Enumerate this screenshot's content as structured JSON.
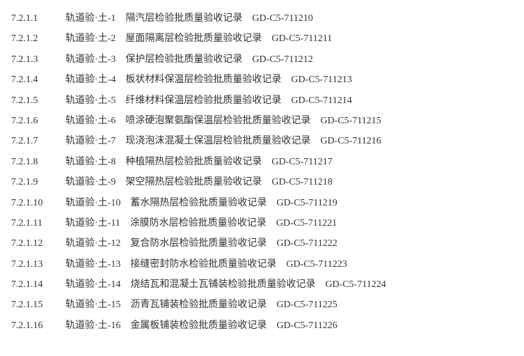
{
  "text_color": "#333333",
  "background_color": "#ffffff",
  "font_family": "SimSun",
  "font_size": 14,
  "line_height": 2.1,
  "entries": [
    {
      "num": "7.2.1.1",
      "label": "轨道验·土-1",
      "title": "隔汽层检验批质量验收记录",
      "code": "GD-C5-711210"
    },
    {
      "num": "7.2.1.2",
      "label": "轨道验·土-2",
      "title": "屋面隔离层检验批质量验收记录",
      "code": "GD-C5-711211"
    },
    {
      "num": "7.2.1.3",
      "label": "轨道验·土-3",
      "title": "保护层检验批质量验收记录",
      "code": "GD-C5-711212"
    },
    {
      "num": "7.2.1.4",
      "label": "轨道验·土-4",
      "title": "板状材料保温层检验批质量验收记录",
      "code": "GD-C5-711213"
    },
    {
      "num": "7.2.1.5",
      "label": "轨道验·土-5",
      "title": "纤维材料保温层检验批质量验收记录",
      "code": "GD-C5-711214"
    },
    {
      "num": "7.2.1.6",
      "label": "轨道验·土-6",
      "title": "喷涂硬泡聚氨酯保温层检验批质量验收记录",
      "code": "GD-C5-711215"
    },
    {
      "num": "7.2.1.7",
      "label": "轨道验·土-7",
      "title": "现浇泡沫混凝土保温层检验批质量验收记录",
      "code": "GD-C5-711216"
    },
    {
      "num": "7.2.1.8",
      "label": "轨道验·土-8",
      "title": "种植隔热层检验批质量验收记录",
      "code": "GD-C5-711217"
    },
    {
      "num": "7.2.1.9",
      "label": "轨道验·土-9",
      "title": "架空隔热层检验批质量验收记录",
      "code": "GD-C5-711218"
    },
    {
      "num": "7.2.1.10",
      "label": "轨道验·土-10",
      "title": "蓄水隔热层检验批质量验收记录",
      "code": "GD-C5-711219"
    },
    {
      "num": "7.2.1.11",
      "label": "轨道验·土-11",
      "title": "涂膜防水层检验批质量验收记录",
      "code": "GD-C5-711221"
    },
    {
      "num": "7.2.1.12",
      "label": "轨道验·土-12",
      "title": "复合防水层检验批质量验收记录",
      "code": "GD-C5-711222"
    },
    {
      "num": "7.2.1.13",
      "label": "轨道验·土-13",
      "title": "接缝密封防水检验批质量验收记录",
      "code": "GD-C5-711223"
    },
    {
      "num": "7.2.1.14",
      "label": "轨道验·土-14",
      "title": "烧结瓦和混凝土瓦铺装检验批质量验收记录",
      "code": "GD-C5-711224"
    },
    {
      "num": "7.2.1.15",
      "label": "轨道验·土-15",
      "title": "沥青瓦铺装检验批质量验收记录",
      "code": "GD-C5-711225"
    },
    {
      "num": "7.2.1.16",
      "label": "轨道验·土-16",
      "title": "金属板铺装检验批质量验收记录",
      "code": "GD-C5-711226"
    }
  ]
}
